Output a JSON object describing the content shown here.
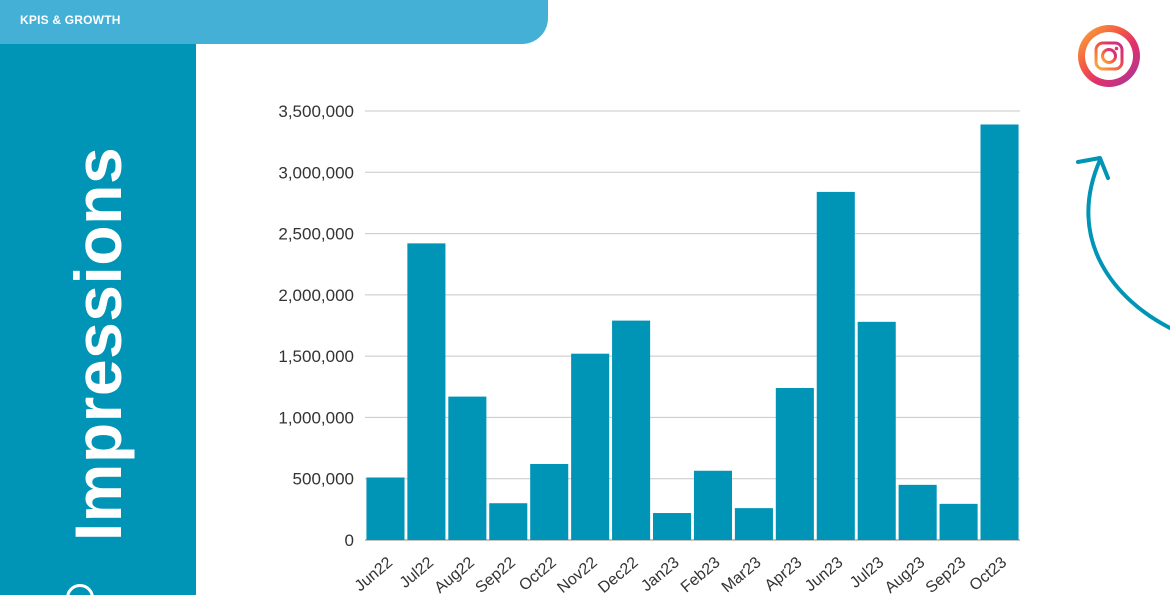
{
  "header": {
    "section_label": "KPIS & GROWTH"
  },
  "side": {
    "title": "Impressions"
  },
  "icons": {
    "social": "instagram-icon",
    "arrow": "curved-arrow-icon"
  },
  "colors": {
    "accent": "#0095b6",
    "header_tab": "#45b0d6",
    "grid": "#c8c8c8",
    "text": "#333333"
  },
  "chart_data": {
    "type": "bar",
    "title": "",
    "xlabel": "",
    "ylabel": "",
    "categories": [
      "Jun22",
      "Jul22",
      "Aug22",
      "Sep22",
      "Oct22",
      "Nov22",
      "Dec22",
      "Jan23",
      "Feb23",
      "Mar23",
      "Apr23",
      "Jun23",
      "Jul23",
      "Aug23",
      "Sep23",
      "Oct23"
    ],
    "values": [
      510000,
      2420000,
      1170000,
      300000,
      620000,
      1520000,
      1790000,
      220000,
      565000,
      260000,
      1240000,
      2840000,
      1780000,
      450000,
      295000,
      3390000
    ],
    "ylim": [
      0,
      3500000
    ],
    "yticks": [
      0,
      500000,
      1000000,
      1500000,
      2000000,
      2500000,
      3000000,
      3500000
    ],
    "ytick_labels": [
      "0",
      "500,000",
      "1,000,000",
      "1,500,000",
      "2,000,000",
      "2,500,000",
      "3,000,000",
      "3,500,000"
    ],
    "grid": true,
    "bar_color": "#0095b6"
  }
}
